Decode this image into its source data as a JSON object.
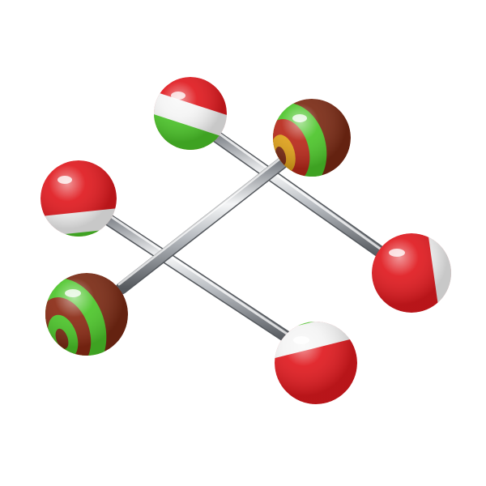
{
  "scene": {
    "background": "#ffffff",
    "subject": "barbell-piercings",
    "count": 3,
    "colors": {
      "red": "#e01a1f",
      "green": "#4cc52a",
      "white": "#f4f4f4",
      "brown": "#7a2a14",
      "steel": "#c9ccd0"
    }
  }
}
